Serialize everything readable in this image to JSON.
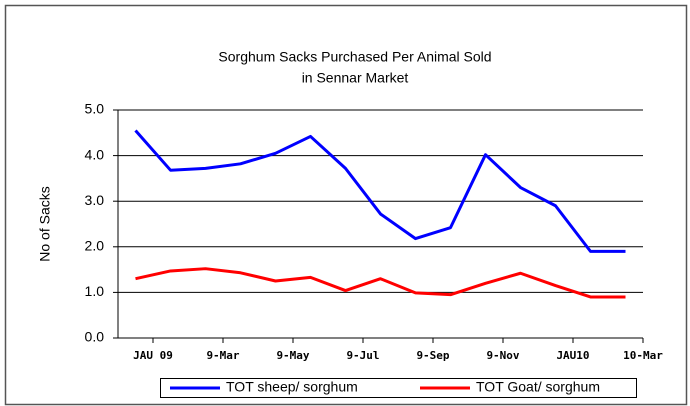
{
  "chart_data": {
    "type": "line",
    "title": [
      "Sorghum Sacks Purchased Per Animal Sold",
      "in Sennar Market"
    ],
    "y_label": "No of Sacks",
    "categories": [
      null,
      null,
      null,
      null,
      null,
      null,
      null,
      null,
      null,
      null,
      null,
      null,
      null,
      null,
      null
    ],
    "xlim": [
      0,
      15
    ],
    "xticks": [
      {
        "value": 1,
        "label": "JAU 09"
      },
      {
        "value": 3,
        "label": "9-Mar"
      },
      {
        "value": 5,
        "label": "9-May"
      },
      {
        "value": 7,
        "label": "9-Jul"
      },
      {
        "value": 9,
        "label": "9-Sep"
      },
      {
        "value": 11,
        "label": "9-Nov"
      },
      {
        "value": 13,
        "label": "JAU10"
      },
      {
        "value": 15,
        "label": "10-Mar"
      }
    ],
    "ylim": [
      0,
      5
    ],
    "yticks": [
      {
        "value": 0,
        "label": "0.0"
      },
      {
        "value": 1,
        "label": "1.0"
      },
      {
        "value": 2,
        "label": "2.0"
      },
      {
        "value": 3,
        "label": "3.0"
      },
      {
        "value": 4,
        "label": "4.0"
      },
      {
        "value": 5,
        "label": "5.0"
      }
    ],
    "grid": true,
    "legend": "bottom",
    "series": [
      {
        "name": "TOT sheep/ sorghum",
        "color": "#0000ff",
        "values": [
          4.55,
          3.68,
          3.72,
          3.82,
          4.05,
          4.42,
          3.72,
          2.72,
          2.18,
          2.42,
          4.02,
          3.3,
          2.9,
          1.9,
          1.9
        ]
      },
      {
        "name": "TOT Goat/ sorghum",
        "color": "#ff0000",
        "values": [
          1.3,
          1.47,
          1.52,
          1.43,
          1.25,
          1.33,
          1.04,
          1.3,
          0.99,
          0.95,
          1.2,
          1.42,
          1.15,
          0.9,
          0.9
        ]
      }
    ]
  }
}
